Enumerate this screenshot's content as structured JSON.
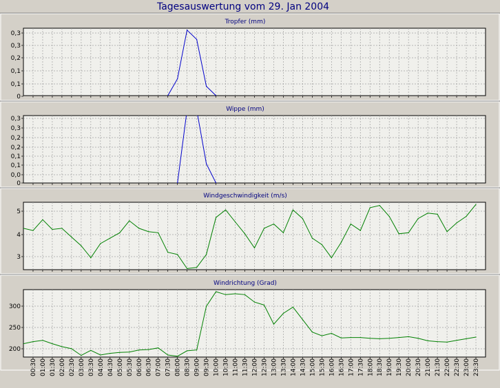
{
  "page": {
    "title": "Tagesauswertung vom 29. Jan 2004"
  },
  "colors": {
    "background": "#d4d0c8",
    "plot_bg": "#f0f0ec",
    "title": "#000080",
    "grid": "#a0a0a0",
    "blue_series": "#0000cc",
    "green_series": "#008000"
  },
  "x_ticks": [
    "00:30",
    "01:00",
    "01:30",
    "02:00",
    "02:30",
    "03:00",
    "03:30",
    "04:00",
    "04:30",
    "05:00",
    "05:30",
    "06:00",
    "06:30",
    "07:00",
    "07:30",
    "08:00",
    "08:30",
    "09:00",
    "09:30",
    "10:00",
    "10:30",
    "11:00",
    "11:30",
    "12:00",
    "12:30",
    "13:00",
    "13:30",
    "14:00",
    "14:30",
    "15:00",
    "15:30",
    "16:00",
    "16:30",
    "17:00",
    "17:30",
    "18:00",
    "18:30",
    "19:00",
    "19:30",
    "20:00",
    "20:30",
    "21:00",
    "21:30",
    "22:00",
    "22:30",
    "23:00",
    "23:30"
  ],
  "chart_data": [
    {
      "type": "line",
      "title": "Tropfer (mm)",
      "ytick_labels": [
        "0",
        "0,1",
        "0,1",
        "0,2",
        "0,3",
        "0,3"
      ],
      "ylim": [
        0,
        0.36
      ],
      "grid": true,
      "color": "#0000cc",
      "x": [
        "07:30",
        "08:00",
        "08:30",
        "09:00",
        "09:30",
        "10:00"
      ],
      "values": [
        0,
        0.09,
        0.35,
        0.3,
        0.05,
        0
      ]
    },
    {
      "type": "line",
      "title": "Wippe (mm)",
      "ytick_labels": [
        "0",
        "0,0",
        "0,1",
        "0,1",
        "0,2",
        "0,2",
        "0,3",
        "0,3"
      ],
      "ylim": [
        0,
        0.35
      ],
      "grid": true,
      "color": "#0000cc",
      "x": [
        "08:00",
        "08:30",
        "09:00",
        "09:30",
        "10:00"
      ],
      "values": [
        0,
        0.38,
        0.38,
        0.1,
        0
      ]
    },
    {
      "type": "line",
      "title": "Windgeschwindigkeit (m/s)",
      "ytick_labels": [
        "3",
        "4",
        "5"
      ],
      "ylim": [
        2.4,
        5.5
      ],
      "grid": true,
      "color": "#008000",
      "x": [
        "00:00",
        "00:30",
        "01:00",
        "01:30",
        "02:00",
        "02:30",
        "03:00",
        "03:30",
        "04:00",
        "04:30",
        "05:00",
        "05:30",
        "06:00",
        "06:30",
        "07:00",
        "07:30",
        "08:00",
        "08:30",
        "09:00",
        "09:30",
        "10:00",
        "10:30",
        "11:00",
        "11:30",
        "12:00",
        "12:30",
        "13:00",
        "13:30",
        "14:00",
        "14:30",
        "15:00",
        "15:30",
        "16:00",
        "16:30",
        "17:00",
        "17:30",
        "18:00",
        "18:30",
        "19:00",
        "19:30",
        "20:00",
        "20:30",
        "21:00",
        "21:30",
        "22:00",
        "22:30",
        "23:00",
        "23:30"
      ],
      "values": [
        4.3,
        4.2,
        4.7,
        4.25,
        4.3,
        3.9,
        3.5,
        2.95,
        3.6,
        3.85,
        4.1,
        4.65,
        4.3,
        4.15,
        4.1,
        3.2,
        3.1,
        2.45,
        2.5,
        3.1,
        4.8,
        5.15,
        4.6,
        4.05,
        3.4,
        4.3,
        4.5,
        4.1,
        5.15,
        4.75,
        3.85,
        3.55,
        2.95,
        3.65,
        4.5,
        4.2,
        5.25,
        5.35,
        4.85,
        4.05,
        4.1,
        4.75,
        5.0,
        4.95,
        4.15,
        4.55,
        4.85,
        5.4
      ]
    },
    {
      "type": "line",
      "title": "Windrichtung (Grad)",
      "ytick_labels": [
        "200",
        "250",
        "300"
      ],
      "ylim": [
        178,
        340
      ],
      "grid": true,
      "color": "#008000",
      "x": [
        "00:00",
        "00:30",
        "01:00",
        "01:30",
        "02:00",
        "02:30",
        "03:00",
        "03:30",
        "04:00",
        "04:30",
        "05:00",
        "05:30",
        "06:00",
        "06:30",
        "07:00",
        "07:30",
        "08:00",
        "08:30",
        "09:00",
        "09:30",
        "10:00",
        "10:30",
        "11:00",
        "11:30",
        "12:00",
        "12:30",
        "13:00",
        "13:30",
        "14:00",
        "14:30",
        "15:00",
        "15:30",
        "16:00",
        "16:30",
        "17:00",
        "17:30",
        "18:00",
        "18:30",
        "19:00",
        "19:30",
        "20:00",
        "20:30",
        "21:00",
        "21:30",
        "22:00",
        "22:30",
        "23:00",
        "23:30"
      ],
      "values": [
        210,
        215,
        218,
        210,
        203,
        198,
        182,
        194,
        183,
        187,
        189,
        190,
        195,
        196,
        200,
        183,
        180,
        193,
        195,
        300,
        335,
        328,
        330,
        328,
        310,
        303,
        257,
        283,
        298,
        268,
        238,
        229,
        235,
        224,
        225,
        225,
        223,
        222,
        223,
        225,
        227,
        223,
        217,
        215,
        214,
        218,
        222,
        226
      ]
    }
  ]
}
